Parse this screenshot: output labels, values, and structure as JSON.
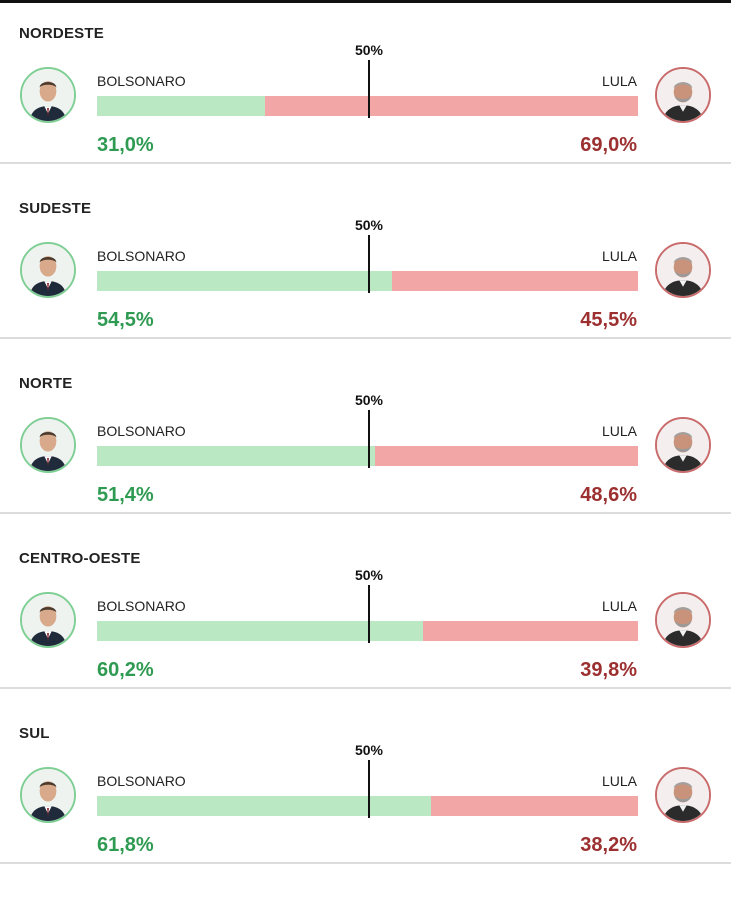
{
  "chart_data": {
    "type": "bar",
    "midpoint_label": "50%",
    "series_labels": [
      "BOLSONARO",
      "LULA"
    ],
    "colors": {
      "bolsonaro": "#b9e8c2",
      "lula": "#f3a6a6",
      "bolsonaro_text": "#2f9a52",
      "lula_text": "#9c2f2f"
    },
    "regions": [
      {
        "name": "NORDESTE",
        "bolsonaro": 31.0,
        "lula": 69.0,
        "bolsonaro_text": "31,0%",
        "lula_text": "69,0%"
      },
      {
        "name": "SUDESTE",
        "bolsonaro": 54.5,
        "lula": 45.5,
        "bolsonaro_text": "54,5%",
        "lula_text": "45,5%"
      },
      {
        "name": "NORTE",
        "bolsonaro": 51.4,
        "lula": 48.6,
        "bolsonaro_text": "51,4%",
        "lula_text": "48,6%"
      },
      {
        "name": "CENTRO-OESTE",
        "bolsonaro": 60.2,
        "lula": 39.8,
        "bolsonaro_text": "60,2%",
        "lula_text": "39,8%"
      },
      {
        "name": "SUL",
        "bolsonaro": 61.8,
        "lula": 38.2,
        "bolsonaro_text": "61,8%",
        "lula_text": "38,2%"
      }
    ]
  },
  "icons": {
    "left_avatar": "person-portrait-icon",
    "right_avatar": "person-portrait-icon"
  }
}
